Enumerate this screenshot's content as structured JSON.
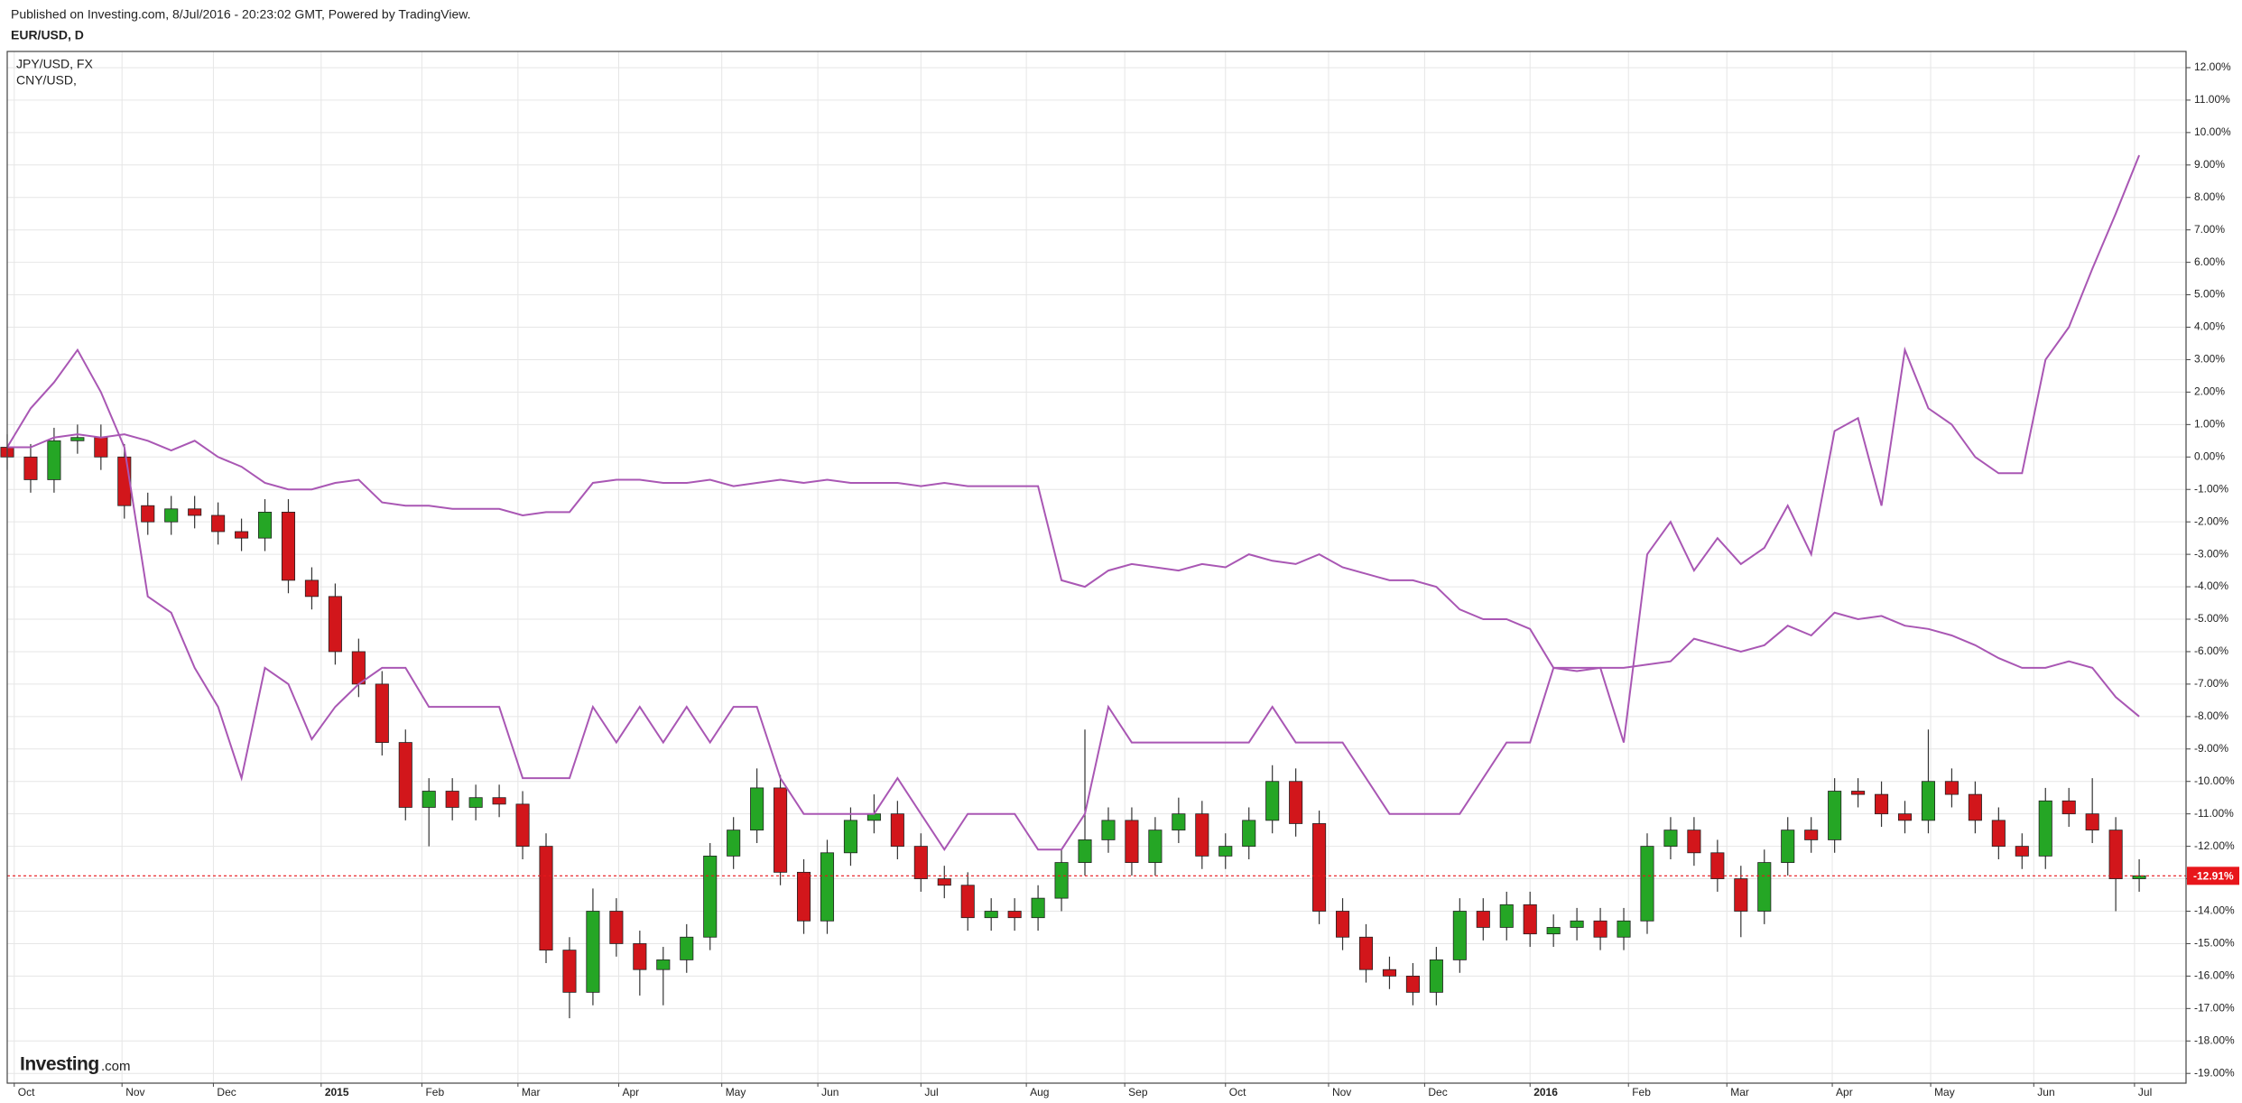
{
  "header": {
    "published": "Published on Investing.com, 8/Jul/2016 - 20:23:02 GMT, Powered by TradingView.",
    "symbol": "EUR/USD, D"
  },
  "logo": {
    "brand": "Investing",
    "suffix": ".com"
  },
  "chart_data": {
    "type": "candlestick",
    "x": [
      0,
      1,
      2,
      3,
      4,
      5,
      6,
      7,
      8,
      9,
      10,
      11,
      12,
      13,
      14,
      15,
      16,
      17,
      18,
      19,
      20,
      21,
      22,
      23,
      24,
      25,
      26,
      27,
      28,
      29,
      30,
      31,
      32,
      33,
      34,
      35,
      36,
      37,
      38,
      39,
      40,
      41,
      42,
      43,
      44,
      45,
      46,
      47,
      48,
      49,
      50,
      51,
      52,
      53,
      54,
      55,
      56,
      57,
      58,
      59,
      60,
      61,
      62,
      63,
      64,
      65,
      66,
      67,
      68,
      69,
      70,
      71,
      72,
      73,
      74,
      75,
      76,
      77,
      78,
      79,
      80,
      81,
      82,
      83,
      84,
      85,
      86,
      87,
      88,
      89,
      90,
      91
    ],
    "open": [
      0.3,
      0,
      -0.7,
      0.5,
      0.6,
      0,
      -1.5,
      -2.0,
      -1.6,
      -1.8,
      -2.3,
      -2.5,
      -1.7,
      -3.8,
      -4.3,
      -6.0,
      -7.0,
      -8.8,
      -10.8,
      -10.3,
      -10.8,
      -10.5,
      -10.7,
      -12.0,
      -15.2,
      -16.5,
      -14.0,
      -15.0,
      -15.8,
      -15.5,
      -14.8,
      -12.3,
      -11.5,
      -10.2,
      -12.8,
      -14.3,
      -12.2,
      -11.2,
      -11.0,
      -12.0,
      -13.0,
      -13.2,
      -14.2,
      -14.0,
      -14.2,
      -13.6,
      -12.5,
      -11.8,
      -11.2,
      -12.5,
      -11.5,
      -11.0,
      -12.3,
      -12.0,
      -11.2,
      -10.0,
      -11.3,
      -14.0,
      -14.8,
      -15.8,
      -16.0,
      -16.5,
      -15.5,
      -14.0,
      -14.5,
      -13.8,
      -14.7,
      -14.5,
      -14.3,
      -14.8,
      -14.3,
      -12.0,
      -11.5,
      -12.2,
      -13.0,
      -14.0,
      -12.5,
      -11.5,
      -11.8,
      -10.3,
      -10.4,
      -11.0,
      -11.2,
      -10.0,
      -10.4,
      -11.2,
      -12.0,
      -12.3,
      -10.6,
      -11.0,
      -11.5,
      -13.0
    ],
    "high": [
      0.7,
      0.4,
      0.9,
      1.0,
      1.0,
      0.4,
      -1.1,
      -1.2,
      -1.2,
      -1.4,
      -1.9,
      -1.3,
      -1.3,
      -3.4,
      -3.9,
      -5.6,
      -6.6,
      -8.4,
      -9.9,
      -9.9,
      -10.1,
      -10.1,
      -10.3,
      -11.6,
      -14.8,
      -13.3,
      -13.6,
      -14.6,
      -15.1,
      -14.4,
      -11.9,
      -11.1,
      -9.6,
      -9.8,
      -12.4,
      -11.8,
      -10.8,
      -10.4,
      -10.6,
      -11.6,
      -12.6,
      -12.8,
      -13.6,
      -13.6,
      -13.2,
      -12.1,
      -8.4,
      -10.8,
      -10.8,
      -11.1,
      -10.5,
      -10.6,
      -11.6,
      -10.8,
      -9.5,
      -9.6,
      -10.9,
      -13.6,
      -14.4,
      -15.4,
      -15.6,
      -15.1,
      -13.6,
      -13.6,
      -13.4,
      -13.4,
      -14.1,
      -13.9,
      -13.9,
      -13.9,
      -11.6,
      -11.1,
      -11.1,
      -11.8,
      -12.6,
      -12.1,
      -11.1,
      -11.1,
      -9.9,
      -9.9,
      -10.0,
      -10.6,
      -8.4,
      -9.6,
      -10.0,
      -10.8,
      -11.6,
      -10.2,
      -10.2,
      -9.9,
      -11.1,
      -12.4
    ],
    "low": [
      -0.4,
      -1.1,
      -1.1,
      0.1,
      -0.4,
      -1.9,
      -2.4,
      -2.4,
      -2.2,
      -2.7,
      -2.9,
      -2.9,
      -4.2,
      -4.7,
      -6.4,
      -7.4,
      -9.2,
      -11.2,
      -12.0,
      -11.2,
      -11.2,
      -11.1,
      -12.4,
      -15.6,
      -17.3,
      -16.9,
      -15.4,
      -16.6,
      -16.9,
      -15.9,
      -15.2,
      -12.7,
      -11.9,
      -13.2,
      -14.7,
      -14.7,
      -12.6,
      -11.6,
      -12.4,
      -13.4,
      -13.6,
      -14.6,
      -14.6,
      -14.6,
      -14.6,
      -14.0,
      -12.9,
      -12.2,
      -12.9,
      -12.9,
      -11.9,
      -12.7,
      -12.7,
      -12.4,
      -11.6,
      -11.7,
      -14.4,
      -15.2,
      -16.2,
      -16.4,
      -16.9,
      -16.9,
      -15.9,
      -14.9,
      -14.9,
      -15.1,
      -15.1,
      -14.9,
      -15.2,
      -15.2,
      -14.7,
      -12.4,
      -12.6,
      -13.4,
      -14.8,
      -14.4,
      -12.9,
      -12.2,
      -12.2,
      -10.8,
      -11.4,
      -11.6,
      -11.6,
      -10.8,
      -11.6,
      -12.4,
      -12.7,
      -12.7,
      -11.4,
      -11.9,
      -14.0,
      -13.4
    ],
    "close": [
      0,
      -0.7,
      0.5,
      0.6,
      0,
      -1.5,
      -2.0,
      -1.6,
      -1.8,
      -2.3,
      -2.5,
      -1.7,
      -3.8,
      -4.3,
      -6.0,
      -7.0,
      -8.8,
      -10.8,
      -10.3,
      -10.8,
      -10.5,
      -10.7,
      -12.0,
      -15.2,
      -16.5,
      -14.0,
      -15.0,
      -15.8,
      -15.5,
      -14.8,
      -12.3,
      -11.5,
      -10.2,
      -12.8,
      -14.3,
      -12.2,
      -11.2,
      -11.0,
      -12.0,
      -13.0,
      -13.2,
      -14.2,
      -14.0,
      -14.2,
      -13.6,
      -12.5,
      -11.8,
      -11.2,
      -12.5,
      -11.5,
      -11.0,
      -12.3,
      -12.0,
      -11.2,
      -10.0,
      -11.3,
      -14.0,
      -14.8,
      -15.8,
      -16.0,
      -16.5,
      -15.5,
      -14.0,
      -14.5,
      -13.8,
      -14.7,
      -14.5,
      -14.3,
      -14.8,
      -14.3,
      -12.0,
      -11.5,
      -12.2,
      -13.0,
      -14.0,
      -12.5,
      -11.5,
      -11.8,
      -10.3,
      -10.4,
      -11.0,
      -11.2,
      -10.0,
      -10.4,
      -11.2,
      -12.0,
      -12.3,
      -10.6,
      -11.0,
      -11.5,
      -13.0,
      -12.91
    ],
    "last_label": "-12.91%",
    "up_color": "#25a625",
    "down_color": "#d2161b",
    "last_color": "#e8161b",
    "series": [
      {
        "name": "JPY/USD, FX",
        "color": "#a957b4",
        "values": [
          0.3,
          1.5,
          2.3,
          3.3,
          2.0,
          0.3,
          -4.3,
          -4.8,
          -6.5,
          -7.7,
          -9.9,
          -6.5,
          -7.0,
          -8.7,
          -7.7,
          -7.0,
          -6.5,
          -6.5,
          -7.7,
          -7.7,
          -7.7,
          -7.7,
          -9.9,
          -9.9,
          -9.9,
          -7.7,
          -8.8,
          -7.7,
          -8.8,
          -7.7,
          -8.8,
          -7.7,
          -7.7,
          -9.9,
          -11.0,
          -11.0,
          -11.0,
          -11.0,
          -9.9,
          -11.0,
          -12.1,
          -11.0,
          -11.0,
          -11.0,
          -12.1,
          -12.1,
          -11.0,
          -7.7,
          -8.8,
          -8.8,
          -8.8,
          -8.8,
          -8.8,
          -8.8,
          -7.7,
          -8.8,
          -8.8,
          -8.8,
          -9.9,
          -11.0,
          -11.0,
          -11.0,
          -11.0,
          -9.9,
          -8.8,
          -8.8,
          -6.5,
          -6.5,
          -6.5,
          -8.8,
          -3.0,
          -2.0,
          -3.5,
          -2.5,
          -3.3,
          -2.8,
          -1.5,
          -3.0,
          0.8,
          1.2,
          -1.5,
          3.3,
          1.5,
          1.0,
          0,
          -0.5,
          -0.5,
          3.0,
          4.0,
          5.8,
          7.5,
          9.3
        ]
      },
      {
        "name": "CNY/USD,",
        "color": "#a957b4",
        "values": [
          0.3,
          0.3,
          0.6,
          0.7,
          0.6,
          0.7,
          0.5,
          0.2,
          0.5,
          0,
          -0.3,
          -0.8,
          -1.0,
          -1.0,
          -0.8,
          -0.7,
          -1.4,
          -1.5,
          -1.5,
          -1.6,
          -1.6,
          -1.6,
          -1.8,
          -1.7,
          -1.7,
          -0.8,
          -0.7,
          -0.7,
          -0.8,
          -0.8,
          -0.7,
          -0.9,
          -0.8,
          -0.7,
          -0.8,
          -0.7,
          -0.8,
          -0.8,
          -0.8,
          -0.9,
          -0.8,
          -0.9,
          -0.9,
          -0.9,
          -0.9,
          -3.8,
          -4.0,
          -3.5,
          -3.3,
          -3.4,
          -3.5,
          -3.3,
          -3.4,
          -3.0,
          -3.2,
          -3.3,
          -3.0,
          -3.4,
          -3.6,
          -3.8,
          -3.8,
          -4.0,
          -4.7,
          -5.0,
          -5.0,
          -5.3,
          -6.5,
          -6.6,
          -6.5,
          -6.5,
          -6.4,
          -6.3,
          -5.6,
          -5.8,
          -6.0,
          -5.8,
          -5.2,
          -5.5,
          -4.8,
          -5.0,
          -4.9,
          -5.2,
          -5.3,
          -5.5,
          -5.8,
          -6.2,
          -6.5,
          -6.5,
          -6.3,
          -6.5,
          -7.4,
          -8.0
        ]
      }
    ],
    "xlim": [
      0,
      93
    ],
    "xticks": [
      {
        "value": 0.3,
        "label": "Oct"
      },
      {
        "value": 4.9,
        "label": "Nov"
      },
      {
        "value": 8.8,
        "label": "Dec"
      },
      2015,
      {
        "value": 17.7,
        "label": "Feb"
      },
      {
        "value": 21.8,
        "label": "Mar"
      },
      {
        "value": 26.1,
        "label": "Apr"
      },
      {
        "value": 30.5,
        "label": "May"
      },
      {
        "value": 34.6,
        "label": "Jun"
      },
      {
        "value": 39,
        "label": "Jul"
      },
      {
        "value": 43.5,
        "label": "Aug"
      },
      {
        "value": 47.7,
        "label": "Sep"
      },
      {
        "value": 52,
        "label": "Oct"
      },
      {
        "value": 56.4,
        "label": "Nov"
      },
      {
        "value": 60.5,
        "label": "Dec"
      },
      2016,
      {
        "value": 69.2,
        "label": "Feb"
      },
      {
        "value": 73.4,
        "label": "Mar"
      },
      {
        "value": 77.9,
        "label": "Apr"
      },
      {
        "value": 82.1,
        "label": "May"
      },
      {
        "value": 86.5,
        "label": "Jun"
      },
      {
        "value": 90.8,
        "label": "Jul"
      }
    ],
    "year_tick_positions": [
      13.4,
      65
    ],
    "ylim": [
      -19.3,
      12.5
    ],
    "yticks": [
      {
        "value": 12,
        "label": "12.00%"
      },
      {
        "value": 11,
        "label": "11.00%"
      },
      {
        "value": 10,
        "label": "10.00%"
      },
      {
        "value": 9,
        "label": "9.00%"
      },
      {
        "value": 8,
        "label": "8.00%"
      },
      {
        "value": 7,
        "label": "7.00%"
      },
      {
        "value": 6,
        "label": "6.00%"
      },
      {
        "value": 5,
        "label": "5.00%"
      },
      {
        "value": 4,
        "label": "4.00%"
      },
      {
        "value": 3,
        "label": "3.00%"
      },
      {
        "value": 2,
        "label": "2.00%"
      },
      {
        "value": 1,
        "label": "1.00%"
      },
      {
        "value": 0,
        "label": "0.00%"
      },
      {
        "value": -1,
        "label": "-1.00%"
      },
      {
        "value": -2,
        "label": "-2.00%"
      },
      {
        "value": -3,
        "label": "-3.00%"
      },
      {
        "value": -4,
        "label": "-4.00%"
      },
      {
        "value": -5,
        "label": "-5.00%"
      },
      {
        "value": -6,
        "label": "-6.00%"
      },
      {
        "value": -7,
        "label": "-7.00%"
      },
      {
        "value": -8,
        "label": "-8.00%"
      },
      {
        "value": -9,
        "label": "-9.00%"
      },
      {
        "value": -10,
        "label": "-10.00%"
      },
      {
        "value": -11,
        "label": "-11.00%"
      },
      {
        "value": -12,
        "label": "-12.00%"
      },
      {
        "value": -13,
        "label": "-13.00%"
      },
      {
        "value": -14,
        "label": "-14.00%"
      },
      {
        "value": -15,
        "label": "-15.00%"
      },
      {
        "value": -16,
        "label": "-16.00%"
      },
      {
        "value": -17,
        "label": "-17.00%"
      },
      {
        "value": -18,
        "label": "-18.00%"
      },
      {
        "value": -19,
        "label": "-19.00%"
      }
    ],
    "grid": true
  }
}
